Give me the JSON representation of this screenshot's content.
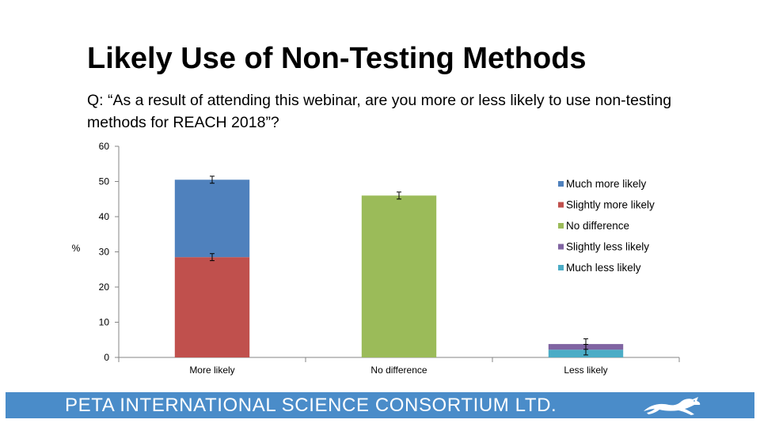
{
  "slide": {
    "title": "Likely Use of Non-Testing Methods",
    "question": "Q: “As a result of attending this webinar, are you more or less likely to use non-testing methods for REACH 2018”?"
  },
  "footer": {
    "text": "PETA INTERNATIONAL SCIENCE CONSORTIUM LTD.",
    "logo_icon": "running-hare-icon",
    "background": "#4a8cc9"
  },
  "chart_data": {
    "type": "bar",
    "stacked": true,
    "categories": [
      "More likely",
      "No difference",
      "Less likely"
    ],
    "ylabel": "%",
    "ylim": [
      0,
      60
    ],
    "yticks": [
      0,
      10,
      20,
      30,
      40,
      50,
      60
    ],
    "grid": false,
    "legend_position": "right",
    "series": [
      {
        "name": "Much more likely",
        "color": "#4f81bd",
        "values": [
          22,
          0,
          0
        ],
        "errors": [
          1.0,
          0,
          0
        ]
      },
      {
        "name": "Slightly more likely",
        "color": "#c0504d",
        "values": [
          28.5,
          0,
          0
        ],
        "errors": [
          1.0,
          0,
          0
        ]
      },
      {
        "name": "No difference",
        "color": "#9bbb59",
        "values": [
          0,
          46,
          0
        ],
        "errors": [
          0,
          1.0,
          0
        ]
      },
      {
        "name": "Slightly less likely",
        "color": "#8064a2",
        "values": [
          0,
          0,
          1.6
        ],
        "errors": [
          0,
          0,
          1.5
        ]
      },
      {
        "name": "Much less likely",
        "color": "#4bacc6",
        "values": [
          0,
          0,
          2.2
        ],
        "errors": [
          0,
          0,
          1.5
        ]
      }
    ],
    "stack_order": [
      "Much less likely",
      "Slightly less likely",
      "Slightly more likely",
      "No difference",
      "Much more likely"
    ]
  }
}
